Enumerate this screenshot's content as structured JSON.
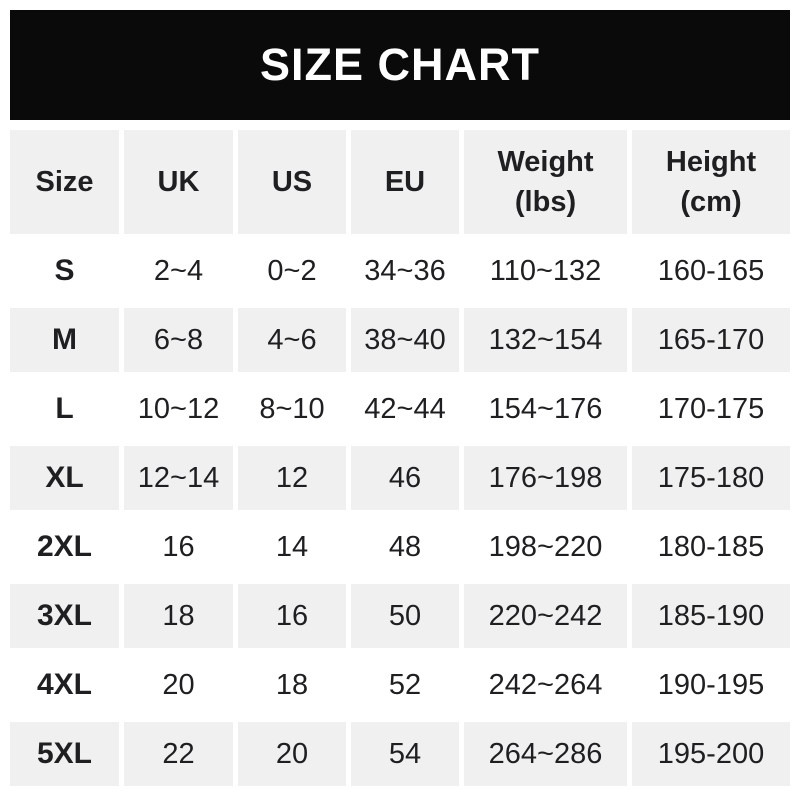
{
  "banner": {
    "title": "SIZE CHART"
  },
  "colors": {
    "banner_bg": "#0a0a0a",
    "banner_text": "#ffffff",
    "row_alt_bg": "#f0f0f1",
    "row_bg": "#ffffff",
    "text": "#1f1f21"
  },
  "table": {
    "headers": [
      "Size",
      "UK",
      "US",
      "EU",
      "Weight\n(lbs)",
      "Height\n(cm)"
    ],
    "rows": [
      {
        "size": "S",
        "uk": "2~4",
        "us": "0~2",
        "eu": "34~36",
        "weight": "110~132",
        "height": "160-165"
      },
      {
        "size": "M",
        "uk": "6~8",
        "us": "4~6",
        "eu": "38~40",
        "weight": "132~154",
        "height": "165-170"
      },
      {
        "size": "L",
        "uk": "10~12",
        "us": "8~10",
        "eu": "42~44",
        "weight": "154~176",
        "height": "170-175"
      },
      {
        "size": "XL",
        "uk": "12~14",
        "us": "12",
        "eu": "46",
        "weight": "176~198",
        "height": "175-180"
      },
      {
        "size": "2XL",
        "uk": "16",
        "us": "14",
        "eu": "48",
        "weight": "198~220",
        "height": "180-185"
      },
      {
        "size": "3XL",
        "uk": "18",
        "us": "16",
        "eu": "50",
        "weight": "220~242",
        "height": "185-190"
      },
      {
        "size": "4XL",
        "uk": "20",
        "us": "18",
        "eu": "52",
        "weight": "242~264",
        "height": "190-195"
      },
      {
        "size": "5XL",
        "uk": "22",
        "us": "20",
        "eu": "54",
        "weight": "264~286",
        "height": "195-200"
      }
    ]
  },
  "chart_data": {
    "type": "table",
    "title": "SIZE CHART",
    "columns": [
      "Size",
      "UK",
      "US",
      "EU",
      "Weight (lbs)",
      "Height (cm)"
    ],
    "rows": [
      [
        "S",
        "2~4",
        "0~2",
        "34~36",
        "110~132",
        "160-165"
      ],
      [
        "M",
        "6~8",
        "4~6",
        "38~40",
        "132~154",
        "165-170"
      ],
      [
        "L",
        "10~12",
        "8~10",
        "42~44",
        "154~176",
        "170-175"
      ],
      [
        "XL",
        "12~14",
        "12",
        "46",
        "176~198",
        "175-180"
      ],
      [
        "2XL",
        "16",
        "14",
        "48",
        "198~220",
        "180-185"
      ],
      [
        "3XL",
        "18",
        "16",
        "50",
        "220~242",
        "185-190"
      ],
      [
        "4XL",
        "20",
        "18",
        "52",
        "242~264",
        "190-195"
      ],
      [
        "5XL",
        "22",
        "20",
        "54",
        "264~286",
        "195-200"
      ]
    ],
    "layout": {
      "alternating_row_shading": true,
      "header_shaded": true
    }
  }
}
